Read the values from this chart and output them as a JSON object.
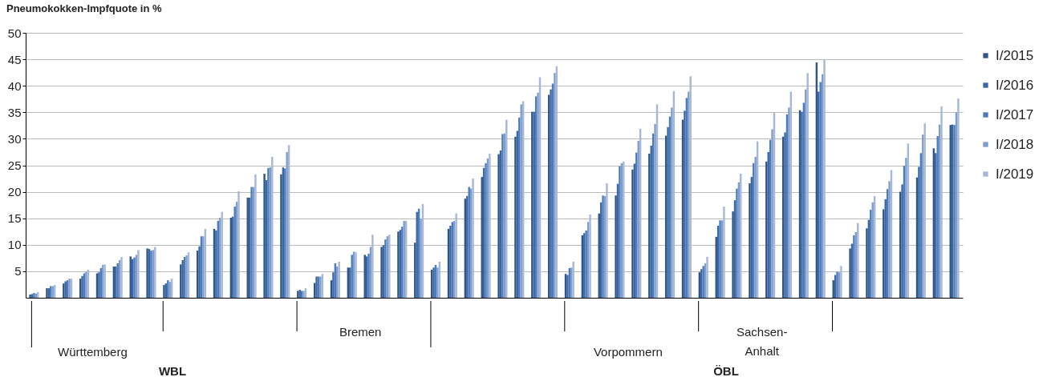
{
  "chart_data": {
    "type": "bar",
    "title": "Pneumokokken-Impfquote in %",
    "categories": [
      null,
      null,
      null,
      null,
      null,
      null,
      null,
      null,
      null,
      null,
      null,
      null,
      null,
      null,
      null,
      null,
      null,
      null,
      null,
      null,
      null,
      null,
      null,
      null,
      null,
      null,
      null,
      null,
      null,
      null,
      null,
      null,
      null,
      null,
      null,
      null,
      null,
      null,
      null,
      null,
      null,
      null,
      null,
      null,
      null,
      null,
      null,
      null,
      null,
      null,
      null,
      null,
      null,
      null,
      null,
      null
    ],
    "series": [
      {
        "name": "I/2015",
        "color": "#2f5486",
        "values": [
          0.6,
          1.8,
          2.7,
          3.6,
          4.6,
          5.9,
          7.8,
          9.3,
          2.4,
          6.3,
          8.9,
          13.0,
          15.1,
          18.9,
          23.4,
          23.3,
          1.3,
          2.8,
          3.3,
          5.7,
          8.1,
          9.6,
          12.5,
          10.4,
          5.3,
          13.0,
          18.7,
          22.8,
          27.1,
          30.4,
          35.1,
          38.3,
          4.5,
          11.8,
          15.9,
          19.3,
          24.2,
          27.2,
          30.6,
          33.6,
          4.8,
          11.5,
          16.3,
          21.6,
          25.7,
          30.4,
          35.4,
          44.4,
          3.3,
          9.3,
          13.1,
          16.7,
          20.0,
          22.7,
          28.2,
          32.6
        ]
      },
      {
        "name": "I/2016",
        "color": "#3b66a3",
        "values": [
          0.7,
          1.8,
          3.1,
          4.1,
          4.8,
          5.9,
          7.3,
          9.2,
          2.7,
          7.1,
          9.7,
          12.7,
          15.3,
          18.9,
          22.2,
          24.6,
          1.5,
          4.0,
          4.8,
          5.7,
          7.8,
          9.9,
          12.8,
          16.2,
          5.7,
          13.6,
          19.2,
          24.5,
          27.8,
          31.5,
          35.1,
          39.3,
          4.3,
          12.2,
          18.0,
          21.5,
          25.3,
          28.7,
          32.2,
          35.3,
          5.4,
          13.6,
          18.4,
          22.8,
          27.5,
          31.2,
          35.1,
          38.9,
          4.3,
          10.2,
          14.7,
          18.6,
          21.4,
          24.7,
          27.3,
          32.7
        ]
      },
      {
        "name": "I/2017",
        "color": "#4a7bbd",
        "values": [
          0.9,
          2.2,
          3.3,
          4.6,
          5.6,
          6.5,
          7.6,
          8.9,
          3.3,
          7.7,
          11.6,
          14.5,
          17.2,
          20.9,
          24.5,
          24.4,
          1.3,
          4.0,
          6.5,
          8.1,
          8.3,
          11.0,
          13.4,
          16.8,
          6.2,
          14.3,
          20.9,
          25.4,
          30.9,
          34.0,
          38.0,
          40.4,
          5.6,
          12.7,
          19.3,
          24.8,
          27.4,
          31.0,
          34.2,
          37.7,
          6.0,
          14.6,
          20.6,
          25.4,
          29.8,
          34.6,
          36.8,
          40.7,
          4.9,
          11.8,
          16.6,
          20.5,
          24.9,
          27.3,
          30.5,
          32.6
        ]
      },
      {
        "name": "I/2018",
        "color": "#7f9dcc",
        "values": [
          0.8,
          2.2,
          3.6,
          4.9,
          6.2,
          7.1,
          8.1,
          9.0,
          3.0,
          8.0,
          11.6,
          15.1,
          18.1,
          20.9,
          24.6,
          27.5,
          1.3,
          4.0,
          5.9,
          8.7,
          9.6,
          11.6,
          14.5,
          14.9,
          5.7,
          14.5,
          20.6,
          26.3,
          31.0,
          36.5,
          38.7,
          42.4,
          5.7,
          14.3,
          19.2,
          25.4,
          29.6,
          32.8,
          35.9,
          38.9,
          6.5,
          14.6,
          21.8,
          26.6,
          31.8,
          35.9,
          39.3,
          42.2,
          4.8,
          12.4,
          18.0,
          22.0,
          26.4,
          30.8,
          32.7,
          35.0
        ]
      },
      {
        "name": "I/2019",
        "color": "#a6b8d9",
        "values": [
          1.1,
          2.4,
          3.6,
          5.3,
          6.3,
          7.7,
          9.0,
          9.6,
          3.6,
          8.6,
          13.0,
          16.2,
          20.1,
          23.3,
          26.6,
          28.8,
          1.8,
          4.5,
          6.8,
          8.6,
          11.9,
          11.9,
          14.5,
          17.7,
          6.8,
          15.9,
          22.5,
          27.2,
          33.6,
          37.1,
          41.6,
          43.7,
          6.8,
          15.7,
          21.6,
          25.7,
          31.9,
          36.5,
          39.0,
          41.8,
          7.7,
          17.2,
          23.4,
          29.5,
          34.9,
          38.9,
          42.4,
          44.9,
          6.0,
          14.1,
          19.2,
          24.1,
          29.1,
          32.9,
          36.1,
          37.6
        ]
      }
    ],
    "ylim": [
      0,
      50
    ],
    "yticks": [
      5,
      10,
      15,
      20,
      25,
      30,
      35,
      40,
      45,
      50
    ],
    "grid": "y",
    "legend": "top right",
    "annotations": [
      "Württemberg",
      "Bremen",
      "Vorpommern",
      "Sachsen-Anhalt",
      "WBL",
      "ÖBL"
    ]
  }
}
